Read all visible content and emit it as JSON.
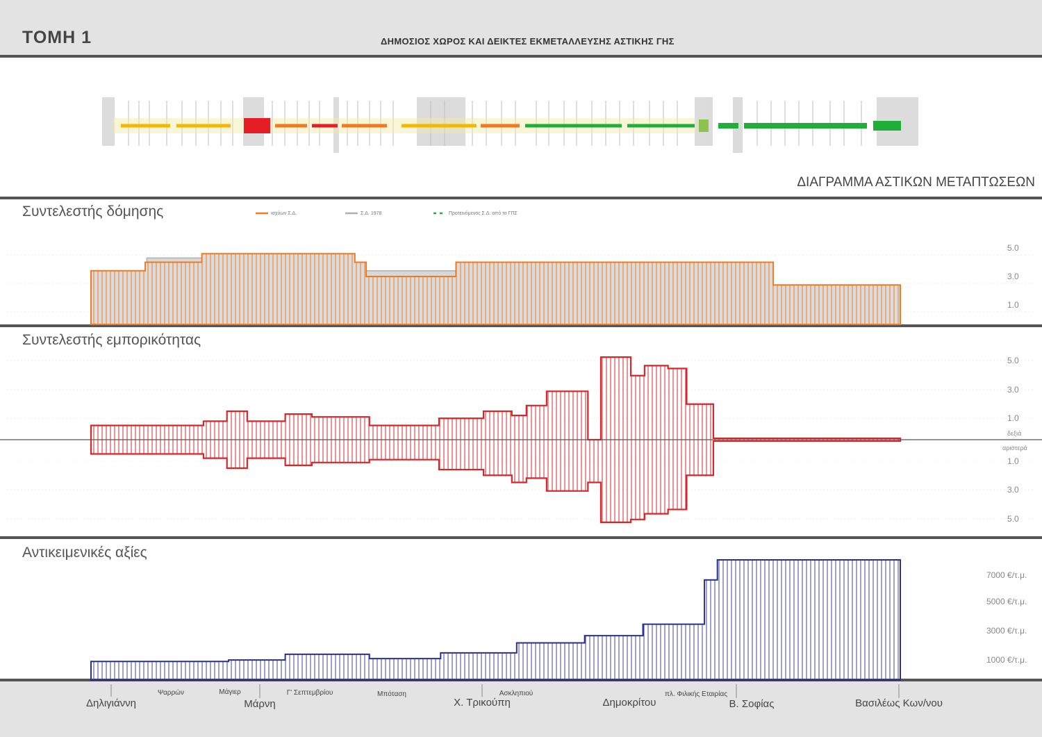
{
  "header": {
    "sheet_title": "ΤΟΜΗ 1",
    "subtitle": "ΔΗΜΟΣΙΟΣ ΧΩΡΟΣ ΚΑΙ ΔΕΙΚΤΕΣ ΕΚΜΕΤΑΛΛΕΥΣΗΣ ΑΣΤΙΚΗΣ ΓΗΣ"
  },
  "map": {
    "caption": "ΔΙΑΓΡΑΜΜΑ ΑΣΤΙΚΩΝ ΜΕΤΑΠΤΩΣΕΩΝ",
    "colors": {
      "yellow": "#f5b800",
      "orange": "#f07a20",
      "red": "#e51e25",
      "green": "#1fae3a",
      "light_green": "#8cc34a"
    }
  },
  "chart_data": [
    {
      "type": "area",
      "title": "Συντελεστής δόμησης",
      "x_ticks_note": "",
      "y_ticks": [
        "5.0",
        "3.0",
        "1.0"
      ],
      "legend": [
        "ισχύων Σ.Δ.",
        "Σ.Δ. 1978",
        "Προτεινόμενος Σ.Δ. από το ΓΠΣ"
      ],
      "colors": {
        "current": "#f07a20",
        "y1978": "#b0b0b0",
        "proposed": "#1fae3a"
      },
      "x_range": [
        0,
        1
      ],
      "ylim": [
        0,
        6
      ],
      "series": [
        {
          "name": "ισχύων Σ.Δ.",
          "steps": [
            [
              0.0,
              0.067,
              3.4
            ],
            [
              0.067,
              0.137,
              4.0
            ],
            [
              0.137,
              0.326,
              4.6
            ],
            [
              0.326,
              0.34,
              4.0
            ],
            [
              0.34,
              0.451,
              3.0
            ],
            [
              0.451,
              0.843,
              4.0
            ],
            [
              0.843,
              1.0,
              2.4
            ]
          ]
        },
        {
          "name": "Σ.Δ. 1978",
          "steps": [
            [
              0.069,
              0.137,
              4.3
            ],
            [
              0.137,
              0.167,
              4.6
            ],
            [
              0.314,
              0.34,
              3.4
            ],
            [
              0.34,
              0.451,
              3.4
            ],
            [
              0.451,
              0.501,
              3.4
            ]
          ]
        }
      ]
    },
    {
      "type": "area",
      "title": "Συντελεστής εμπορικότητας",
      "y_ticks_upper": [
        "5.0",
        "3.0",
        "1.0"
      ],
      "upper_label": "δεξιά",
      "lower_label": "αριστερά",
      "y_ticks_lower": [
        "1.0",
        "3.0",
        "5.0"
      ],
      "colors": {
        "fill": "#d7262a"
      },
      "ylim": [
        -6,
        6
      ],
      "right_side": [
        [
          0.0,
          0.139,
          1.0
        ],
        [
          0.139,
          0.168,
          1.3
        ],
        [
          0.168,
          0.193,
          2.0
        ],
        [
          0.193,
          0.24,
          1.3
        ],
        [
          0.24,
          0.273,
          1.8
        ],
        [
          0.273,
          0.344,
          1.6
        ],
        [
          0.344,
          0.43,
          1.0
        ],
        [
          0.43,
          0.485,
          1.5
        ],
        [
          0.485,
          0.52,
          2.0
        ],
        [
          0.52,
          0.538,
          1.7
        ],
        [
          0.538,
          0.563,
          2.4
        ],
        [
          0.563,
          0.614,
          3.4
        ],
        [
          0.614,
          0.63,
          0.0
        ],
        [
          0.63,
          0.667,
          5.8
        ],
        [
          0.667,
          0.684,
          4.5
        ],
        [
          0.684,
          0.713,
          5.2
        ],
        [
          0.713,
          0.736,
          5.0
        ],
        [
          0.736,
          0.769,
          2.5
        ],
        [
          0.769,
          1.0,
          0.1
        ]
      ],
      "left_side": [
        [
          0.0,
          0.139,
          1.0
        ],
        [
          0.139,
          0.168,
          1.3
        ],
        [
          0.168,
          0.193,
          2.0
        ],
        [
          0.193,
          0.24,
          1.3
        ],
        [
          0.24,
          0.273,
          1.8
        ],
        [
          0.273,
          0.344,
          1.6
        ],
        [
          0.344,
          0.43,
          1.4
        ],
        [
          0.43,
          0.485,
          2.1
        ],
        [
          0.485,
          0.52,
          2.5
        ],
        [
          0.52,
          0.538,
          3.0
        ],
        [
          0.538,
          0.563,
          2.7
        ],
        [
          0.563,
          0.614,
          3.6
        ],
        [
          0.614,
          0.63,
          3.0
        ],
        [
          0.63,
          0.667,
          5.8
        ],
        [
          0.667,
          0.684,
          5.6
        ],
        [
          0.684,
          0.713,
          5.2
        ],
        [
          0.713,
          0.736,
          4.9
        ],
        [
          0.736,
          0.769,
          2.5
        ],
        [
          0.769,
          1.0,
          0.1
        ]
      ]
    },
    {
      "type": "area",
      "title": "Αντικειμενικές αξίες",
      "y_ticks": [
        "7000 €/τ.μ.",
        "5000 €/τ.μ.",
        "3000 €/τ.μ.",
        "1000 €/τ.μ."
      ],
      "colors": {
        "fill": "#2b2f8e"
      },
      "ylim": [
        0,
        8600
      ],
      "steps": [
        [
          0.0,
          0.17,
          1300
        ],
        [
          0.17,
          0.24,
          1400
        ],
        [
          0.24,
          0.276,
          1800
        ],
        [
          0.276,
          0.344,
          1800
        ],
        [
          0.344,
          0.432,
          1500
        ],
        [
          0.432,
          0.5,
          1900
        ],
        [
          0.5,
          0.526,
          1900
        ],
        [
          0.526,
          0.61,
          2600
        ],
        [
          0.61,
          0.682,
          3100
        ],
        [
          0.682,
          0.758,
          3900
        ],
        [
          0.758,
          0.774,
          7000
        ],
        [
          0.774,
          1.0,
          8400
        ]
      ]
    }
  ],
  "streets": [
    {
      "name": "Δηλιγιάννη",
      "major": true
    },
    {
      "name": "Ψαρρών",
      "major": false
    },
    {
      "name": "Μάγιερ",
      "major": false
    },
    {
      "name": "Μάρνη",
      "major": true
    },
    {
      "name": "Γ' Σεπτεμβρίου",
      "major": false
    },
    {
      "name": "Μπόταση",
      "major": false
    },
    {
      "name": "Χ. Τρικούπη",
      "major": true
    },
    {
      "name": "Ασκληπιού",
      "major": false
    },
    {
      "name": "Δημοκρίτου",
      "major": true
    },
    {
      "name": "πλ. Φιλικής Εταιρίας",
      "major": false
    },
    {
      "name": "Β. Σοφίας",
      "major": true
    },
    {
      "name": "Βασιλέως Κων/νου",
      "major": true
    }
  ]
}
